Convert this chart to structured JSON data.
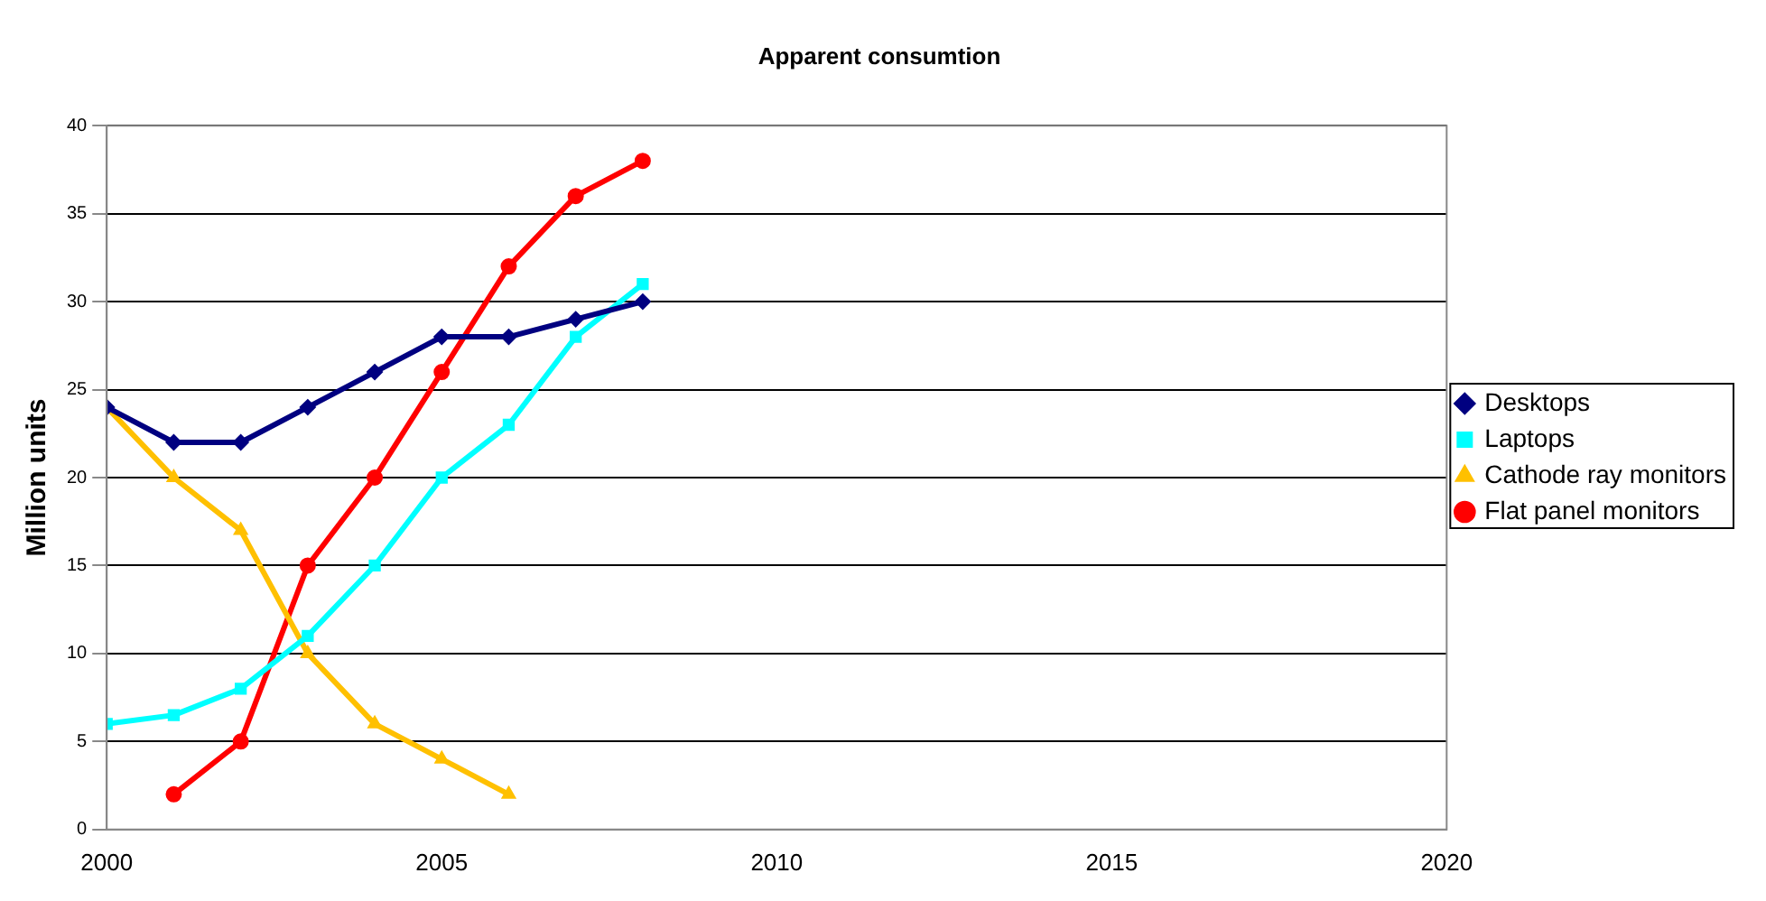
{
  "chart_data": {
    "type": "line",
    "title": "Apparent consumtion",
    "ylabel": "Million units",
    "xlim": [
      2000,
      2020
    ],
    "xticks": [
      2000,
      2005,
      2010,
      2015,
      2020
    ],
    "ylim": [
      0,
      40
    ],
    "yticks": [
      0,
      5,
      10,
      15,
      20,
      25,
      30,
      35,
      40
    ],
    "grid": "y",
    "legend": "right",
    "line_style": "solid",
    "series": [
      {
        "name": "Desktops",
        "color": "#000080",
        "marker": "diamond",
        "x": [
          2000,
          2001,
          2002,
          2003,
          2004,
          2005,
          2006,
          2007,
          2008
        ],
        "values": [
          24,
          22,
          22,
          24,
          26,
          28,
          28,
          29,
          30
        ]
      },
      {
        "name": "Laptops",
        "color": "#00ffff",
        "marker": "square",
        "x": [
          2000,
          2001,
          2002,
          2003,
          2004,
          2005,
          2006,
          2007,
          2008
        ],
        "values": [
          6,
          6.5,
          8,
          11,
          15,
          20,
          23,
          28,
          31
        ]
      },
      {
        "name": "Cathode ray monitors",
        "color": "#ffc000",
        "marker": "triangle",
        "x": [
          2000,
          2001,
          2002,
          2003,
          2004,
          2005,
          2006
        ],
        "values": [
          24,
          20,
          17,
          10,
          6,
          4,
          2
        ]
      },
      {
        "name": "Flat panel monitors",
        "color": "#ff0000",
        "marker": "circle",
        "x": [
          2001,
          2002,
          2003,
          2004,
          2005,
          2006,
          2007,
          2008
        ],
        "values": [
          2,
          5,
          15,
          20,
          26,
          32,
          36,
          38
        ]
      }
    ]
  }
}
